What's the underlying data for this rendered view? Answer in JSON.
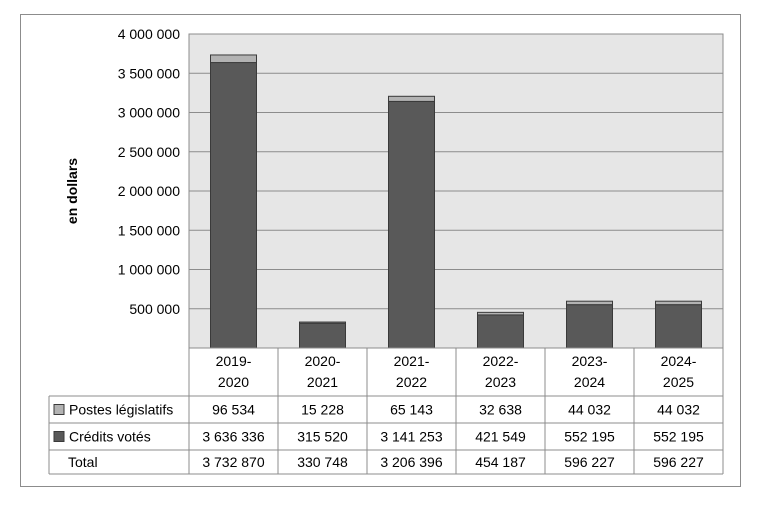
{
  "chart_data": {
    "type": "bar",
    "stacked": true,
    "title": "",
    "xlabel": "",
    "ylabel": "en dollars",
    "ylim": [
      0,
      4000000
    ],
    "yticks": [
      500000,
      1000000,
      1500000,
      2000000,
      2500000,
      3000000,
      3500000,
      4000000
    ],
    "ytick_labels": [
      "500 000",
      "1 000 000",
      "1 500 000",
      "2 000 000",
      "2 500 000",
      "3 000 000",
      "3 500 000",
      "4 000 000"
    ],
    "grid": true,
    "categories": [
      [
        "2019-",
        "2020"
      ],
      [
        "2020-",
        "2021"
      ],
      [
        "2021-",
        "2022"
      ],
      [
        "2022-",
        "2023"
      ],
      [
        "2023-",
        "2024"
      ],
      [
        "2024-",
        "2025"
      ]
    ],
    "series": [
      {
        "name": "Crédits votés",
        "color": "#595959",
        "values": [
          3636336,
          315520,
          3141253,
          421549,
          552195,
          552195
        ],
        "labels": [
          "3 636 336",
          "315 520",
          "3 141 253",
          "421 549",
          "552 195",
          "552 195"
        ]
      },
      {
        "name": "Postes législatifs",
        "color": "#b3b3b3",
        "values": [
          96534,
          15228,
          65143,
          32638,
          44032,
          44032
        ],
        "labels": [
          "96 534",
          "15 228",
          "65 143",
          "32 638",
          "44 032",
          "44 032"
        ]
      }
    ],
    "table_rows_order": [
      "Postes législatifs",
      "Crédits votés",
      "Total"
    ],
    "total": {
      "name": "Total",
      "values": [
        3732870,
        330748,
        3206396,
        454187,
        596227,
        596227
      ],
      "labels": [
        "3 732 870",
        "330 748",
        "3 206 396",
        "454 187",
        "596 227",
        "596 227"
      ]
    },
    "plot_background": "#e6e6e6"
  }
}
